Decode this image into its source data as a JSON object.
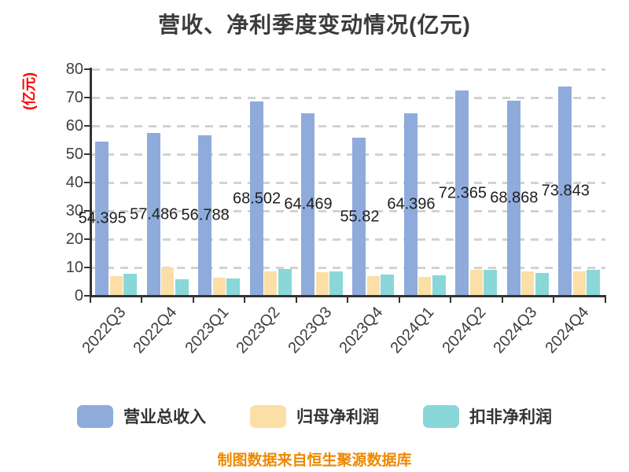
{
  "title": "营收、净利季度变动情况(亿元)",
  "y_axis_label": "(亿元)",
  "footer": "制图数据来自恒生聚源数据库",
  "colors": {
    "revenue_bar": "#8FABDB",
    "net_profit_bar": "#FBDFA6",
    "deducted_profit_bar": "#89D7D9",
    "title_text": "#3B3B3B",
    "axis": "#333333",
    "gridline": "#D2D2D2",
    "y_label_red": "#FF0000",
    "footer_orange": "#EE8800",
    "value_label_text": "#1F1F1F",
    "tick_text": "#3F3F3F"
  },
  "legend": [
    {
      "label": "营业总收入",
      "color": "#8FABDB"
    },
    {
      "label": "归母净利润",
      "color": "#FBDFA6"
    },
    {
      "label": "扣非净利润",
      "color": "#89D7D9"
    }
  ],
  "chart_data": {
    "type": "bar",
    "title": "营收、净利季度变动情况(亿元)",
    "xlabel": "",
    "ylabel": "(亿元)",
    "categories": [
      "2022Q3",
      "2022Q4",
      "2023Q1",
      "2023Q2",
      "2023Q3",
      "2023Q4",
      "2024Q1",
      "2024Q2",
      "2024Q3",
      "2024Q4"
    ],
    "series": [
      {
        "name": "营业总收入",
        "color": "#8FABDB",
        "values": [
          54.395,
          57.486,
          56.788,
          68.502,
          64.469,
          55.82,
          64.396,
          72.365,
          68.868,
          73.843
        ],
        "value_labels": [
          "54.395",
          "57.486",
          "56.788",
          "68.502",
          "64.469",
          "55.82",
          "64.396",
          "72.365",
          "68.868",
          "73.843"
        ],
        "value_label_position": "center-of-bar"
      },
      {
        "name": "归母净利润",
        "color": "#FBDFA6",
        "values": [
          7.0,
          10.0,
          6.5,
          8.6,
          8.3,
          7.0,
          6.8,
          9.2,
          8.5,
          8.7
        ],
        "values_note": "estimated from bar heights, no labels shown"
      },
      {
        "name": "扣非净利润",
        "color": "#89D7D9",
        "values": [
          7.9,
          5.8,
          6.1,
          9.5,
          8.5,
          7.4,
          7.2,
          9.3,
          8.1,
          9.3
        ],
        "values_note": "estimated from bar heights, no labels shown"
      }
    ],
    "ylim": [
      0,
      80
    ],
    "ytick_step": 10,
    "ytick_labels": [
      "0",
      "10",
      "20",
      "30",
      "40",
      "50",
      "60",
      "70",
      "80"
    ],
    "grid": "horizontal dashed",
    "legend_position": "bottom",
    "x_tick_label_rotation_deg": -48
  }
}
